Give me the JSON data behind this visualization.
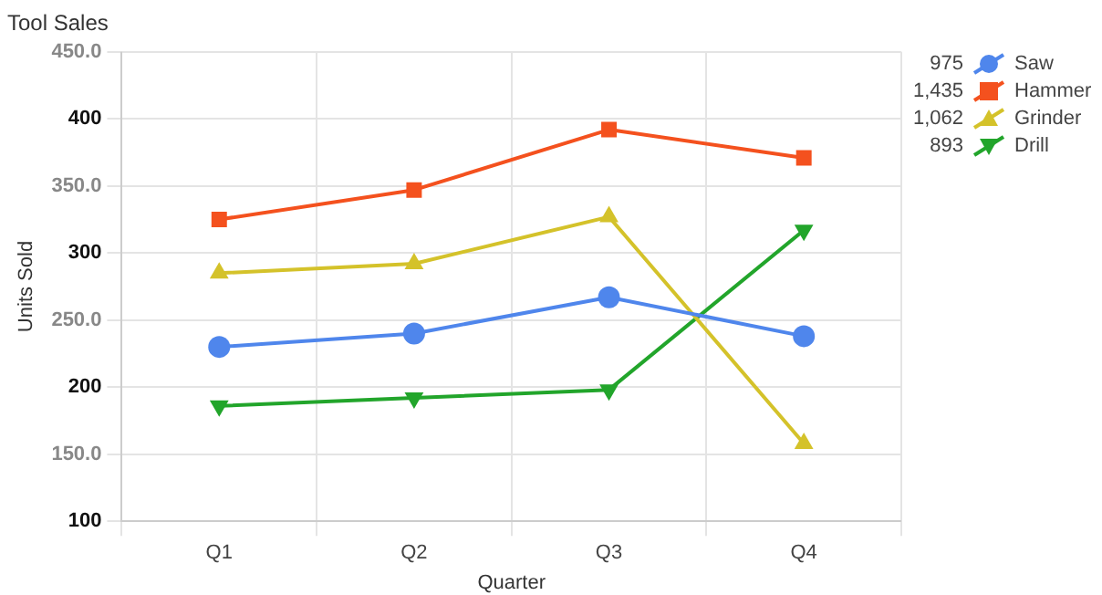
{
  "chart_data": {
    "type": "line",
    "title": "Tool Sales",
    "xlabel": "Quarter",
    "ylabel": "Units Sold",
    "categories": [
      "Q1",
      "Q2",
      "Q3",
      "Q4"
    ],
    "series": [
      {
        "name": "Saw",
        "color": "#4f86ec",
        "marker": "circle",
        "values": [
          230,
          240,
          267,
          238
        ]
      },
      {
        "name": "Hammer",
        "color": "#f4511e",
        "marker": "square",
        "values": [
          325,
          347,
          392,
          371
        ]
      },
      {
        "name": "Grinder",
        "color": "#d4c22a",
        "marker": "triangle",
        "values": [
          285,
          292,
          327,
          158
        ]
      },
      {
        "name": "Drill",
        "color": "#22a52b",
        "marker": "triangle-down",
        "values": [
          186,
          192,
          198,
          317
        ]
      }
    ],
    "annotations": [
      "975",
      "1,435",
      "1,062",
      "893"
    ],
    "ylim": [
      100,
      450
    ],
    "yticks": [
      100,
      {
        "value": 150,
        "label": "150.0"
      },
      200,
      {
        "value": 250,
        "label": "250.0"
      },
      300,
      {
        "value": 350,
        "label": "350.0"
      },
      400,
      {
        "value": 450,
        "label": "450.0"
      }
    ],
    "grid": true,
    "legend": "top right",
    "line_style": "solid"
  }
}
